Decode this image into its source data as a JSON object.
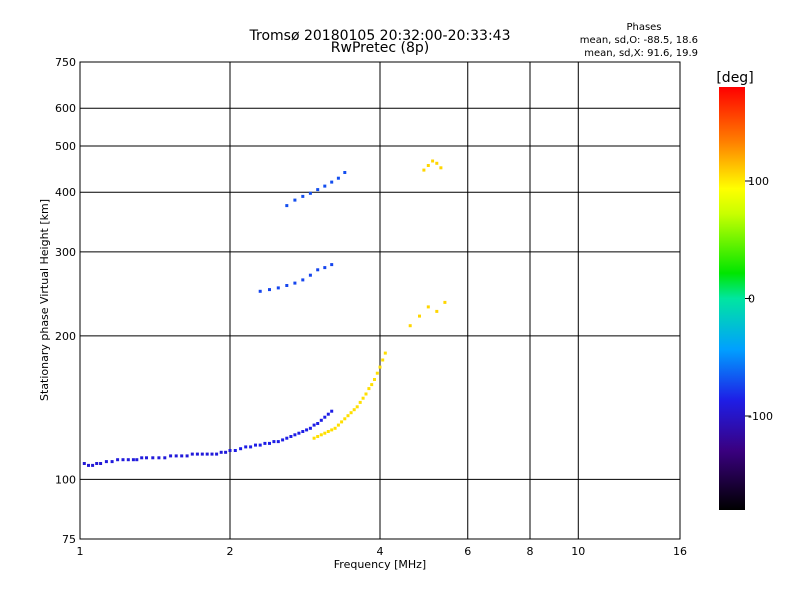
{
  "chart_data": {
    "type": "scatter",
    "title": "Tromsø 20180105 20:32:00-20:33:43",
    "subtitle": "RwPretec (8p)",
    "xlabel": "Frequency [MHz]",
    "ylabel": "Stationary phase Virtual Height [km]",
    "x_scale": "log",
    "y_scale": "log",
    "xlim": [
      1,
      16
    ],
    "ylim": [
      75,
      750
    ],
    "x_ticks": [
      1,
      2,
      4,
      6,
      8,
      10,
      16
    ],
    "x_tick_labels": [
      "1",
      "2",
      "4",
      "6",
      "8",
      "10",
      "16"
    ],
    "y_ticks": [
      75,
      100,
      200,
      300,
      400,
      500,
      600,
      750
    ],
    "y_tick_labels": [
      "75",
      "100",
      "200",
      "300",
      "400",
      "500",
      "600",
      "750"
    ],
    "grid": true,
    "phases_block": {
      "heading": "Phases",
      "line1": "mean, sd,O: -88.5, 18.6",
      "line2": "mean, sd,X: 91.6, 19.9"
    },
    "colorbar": {
      "label": "[deg]",
      "range": [
        -180,
        180
      ],
      "ticks": [
        100,
        0,
        -100
      ],
      "tick_labels": [
        "100",
        "0",
        "-100"
      ]
    },
    "series": [
      {
        "trace": "low",
        "points": [
          [
            1.02,
            108,
            -95
          ],
          [
            1.04,
            107,
            -95
          ],
          [
            1.06,
            107,
            -95
          ],
          [
            1.08,
            108,
            -95
          ],
          [
            1.1,
            108,
            -95
          ],
          [
            1.13,
            109,
            -92
          ],
          [
            1.16,
            109,
            -92
          ],
          [
            1.19,
            110,
            -92
          ],
          [
            1.22,
            110,
            -92
          ],
          [
            1.25,
            110,
            -92
          ],
          [
            1.28,
            110,
            -92
          ],
          [
            1.3,
            110,
            -92
          ],
          [
            1.33,
            111,
            -92
          ],
          [
            1.36,
            111,
            -92
          ],
          [
            1.4,
            111,
            -93
          ],
          [
            1.44,
            111,
            -93
          ],
          [
            1.48,
            111,
            -93
          ],
          [
            1.52,
            112,
            -93
          ],
          [
            1.56,
            112,
            -93
          ],
          [
            1.6,
            112,
            -93
          ],
          [
            1.64,
            112,
            -93
          ],
          [
            1.68,
            113,
            -93
          ],
          [
            1.72,
            113,
            -93
          ],
          [
            1.76,
            113,
            -93
          ],
          [
            1.8,
            113,
            -93
          ],
          [
            1.84,
            113,
            -93
          ],
          [
            1.88,
            113,
            -93
          ],
          [
            1.92,
            114,
            -93
          ],
          [
            1.96,
            114,
            -93
          ],
          [
            2.0,
            115,
            -93
          ],
          [
            2.05,
            115,
            -88
          ],
          [
            2.1,
            116,
            -88
          ],
          [
            2.15,
            117,
            -88
          ],
          [
            2.2,
            117,
            -88
          ],
          [
            2.25,
            118,
            -88
          ],
          [
            2.3,
            118,
            -88
          ],
          [
            2.35,
            119,
            -88
          ],
          [
            2.4,
            119,
            -88
          ],
          [
            2.45,
            120,
            -88
          ],
          [
            2.5,
            120,
            -88
          ],
          [
            2.55,
            121,
            -88
          ],
          [
            2.6,
            122,
            -88
          ],
          [
            2.65,
            123,
            -88
          ],
          [
            2.7,
            124,
            -88
          ],
          [
            2.75,
            125,
            -88
          ],
          [
            2.8,
            126,
            -88
          ],
          [
            2.85,
            127,
            -88
          ],
          [
            2.9,
            128,
            -88
          ],
          [
            2.95,
            130,
            -88
          ],
          [
            3.0,
            131,
            -88
          ],
          [
            3.05,
            133,
            -88
          ],
          [
            3.1,
            135,
            -88
          ],
          [
            3.15,
            137,
            -88
          ],
          [
            3.2,
            139,
            -88
          ]
        ]
      },
      {
        "trace": "high",
        "points": [
          [
            2.95,
            122,
            105
          ],
          [
            3.0,
            123,
            105
          ],
          [
            3.05,
            124,
            105
          ],
          [
            3.1,
            125,
            105
          ],
          [
            3.15,
            126,
            105
          ],
          [
            3.2,
            127,
            105
          ],
          [
            3.25,
            128,
            105
          ],
          [
            3.3,
            130,
            105
          ],
          [
            3.35,
            132,
            105
          ],
          [
            3.4,
            134,
            105
          ],
          [
            3.45,
            136,
            105
          ],
          [
            3.5,
            138,
            105
          ],
          [
            3.55,
            140,
            105
          ],
          [
            3.6,
            142,
            105
          ],
          [
            3.65,
            145,
            105
          ],
          [
            3.7,
            148,
            105
          ],
          [
            3.75,
            151,
            105
          ],
          [
            3.8,
            155,
            105
          ],
          [
            3.85,
            158,
            105
          ],
          [
            3.9,
            162,
            105
          ],
          [
            3.95,
            167,
            105
          ],
          [
            4.0,
            172,
            105
          ],
          [
            4.05,
            178,
            105
          ],
          [
            4.1,
            184,
            105
          ],
          [
            4.6,
            210,
            108
          ],
          [
            4.8,
            220,
            108
          ],
          [
            5.0,
            230,
            108
          ],
          [
            5.2,
            225,
            108
          ],
          [
            5.4,
            235,
            108
          ],
          [
            4.9,
            445,
            108
          ],
          [
            5.0,
            455,
            108
          ],
          [
            5.1,
            465,
            108
          ],
          [
            5.2,
            460,
            108
          ],
          [
            5.3,
            450,
            108
          ]
        ]
      },
      {
        "trace": "upper",
        "points": [
          [
            2.3,
            248,
            -75
          ],
          [
            2.4,
            250,
            -75
          ],
          [
            2.5,
            252,
            -75
          ],
          [
            2.6,
            255,
            -75
          ],
          [
            2.7,
            258,
            -75
          ],
          [
            2.8,
            262,
            -75
          ],
          [
            2.9,
            268,
            -75
          ],
          [
            3.0,
            275,
            -75
          ],
          [
            3.1,
            278,
            -75
          ],
          [
            3.2,
            282,
            -75
          ],
          [
            2.6,
            375,
            -72
          ],
          [
            2.7,
            385,
            -72
          ],
          [
            2.8,
            392,
            -72
          ],
          [
            2.9,
            398,
            -72
          ],
          [
            3.0,
            405,
            -72
          ],
          [
            3.1,
            412,
            -72
          ],
          [
            3.2,
            420,
            -72
          ],
          [
            3.3,
            428,
            -72
          ],
          [
            3.4,
            440,
            -72
          ]
        ]
      }
    ]
  }
}
